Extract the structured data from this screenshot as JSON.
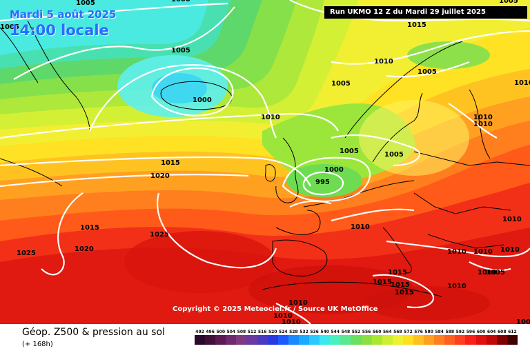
{
  "header": {
    "date": "Mardi 5 août 2025",
    "time": "14:00 locale",
    "run": "Run UKMO 12 Z du Mardi 29 juillet 2025"
  },
  "copyright": "Copyright © 2025 Meteociel.fr / Source UK MetOffice",
  "footer": {
    "title": "Géop. Z500 & pression au sol",
    "subtitle": "(+ 168h)"
  },
  "color_scale": {
    "labels": [
      "492",
      "496",
      "500",
      "504",
      "508",
      "512",
      "516",
      "520",
      "524",
      "528",
      "532",
      "536",
      "540",
      "544",
      "548",
      "552",
      "556",
      "560",
      "564",
      "568",
      "572",
      "576",
      "580",
      "584",
      "588",
      "592",
      "596",
      "600",
      "604",
      "608",
      "612"
    ],
    "colors": [
      "#2a0a2a",
      "#40103a",
      "#5a1a52",
      "#6e2a6e",
      "#803a80",
      "#6a3aa0",
      "#4a3ac0",
      "#2a3ae0",
      "#1a5aff",
      "#1a8aff",
      "#1aaaff",
      "#2acaff",
      "#3ae8f0",
      "#4af0c0",
      "#5ae890",
      "#6ae060",
      "#8ae040",
      "#aae830",
      "#ccf030",
      "#eef030",
      "#ffe020",
      "#ffc020",
      "#ffa020",
      "#ff8020",
      "#ff6020",
      "#ff4020",
      "#f82018",
      "#e01010",
      "#c00808",
      "#800000",
      "#400000"
    ]
  },
  "isobars": {
    "labels": [
      "1005",
      "1005",
      "1005",
      "1005",
      "1000",
      "1010",
      "1010",
      "1015",
      "1010",
      "1005",
      "1005",
      "1010",
      "1010",
      "1010",
      "1015",
      "1020",
      "1005",
      "1000",
      "995",
      "1005",
      "1010",
      "1015",
      "1020",
      "1025",
      "1025",
      "1010",
      "1010",
      "1010",
      "1010",
      "1005",
      "1015",
      "1015",
      "1015",
      "1015",
      "1010",
      "1010",
      "1010",
      "1010",
      "1000",
      "1005"
    ]
  }
}
